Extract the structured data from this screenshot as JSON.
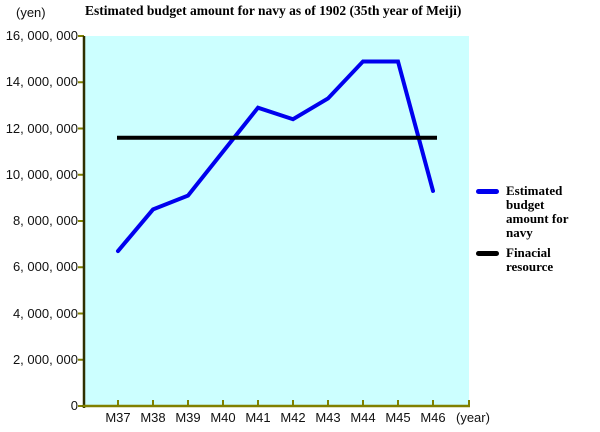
{
  "title": "Estimated budget amount for navy as of 1902 (35th year of Meiji)",
  "y_axis_unit": "(yen)",
  "x_axis_unit": "(year)",
  "chart_data": {
    "type": "line",
    "title": "Estimated budget amount for navy as of 1902 (35th year of Meiji)",
    "xlabel": "(year)",
    "ylabel": "(yen)",
    "categories": [
      "M37",
      "M38",
      "M39",
      "M40",
      "M41",
      "M42",
      "M43",
      "M44",
      "M45",
      "M46"
    ],
    "series": [
      {
        "name": "Estimated budget amount for navy",
        "color": "#0000ee",
        "values": [
          6700000,
          8500000,
          9100000,
          11000000,
          12900000,
          12400000,
          13300000,
          14900000,
          14900000,
          9300000
        ]
      },
      {
        "name": "Finacial resource",
        "color": "#000000",
        "values": [
          11600000,
          11600000,
          11600000,
          11600000,
          11600000,
          11600000,
          11600000,
          11600000,
          11600000,
          11600000
        ]
      }
    ],
    "ylim": [
      0,
      16000000
    ],
    "y_tick_interval": 2000000,
    "y_ticks": [
      {
        "value": 0,
        "label": "0"
      },
      {
        "value": 2000000,
        "label": "2, 000, 000"
      },
      {
        "value": 4000000,
        "label": "4, 000, 000"
      },
      {
        "value": 6000000,
        "label": "6, 000, 000"
      },
      {
        "value": 8000000,
        "label": "8, 000, 000"
      },
      {
        "value": 10000000,
        "label": "10, 000, 000"
      },
      {
        "value": 12000000,
        "label": "12, 000, 000"
      },
      {
        "value": 14000000,
        "label": "14, 000, 000"
      },
      {
        "value": 16000000,
        "label": "16, 000, 000"
      }
    ],
    "grid": false,
    "legend_position": "right",
    "colors": {
      "plot_background": "#ccffff",
      "budget_line": "#0000ee",
      "resource_line": "#000000",
      "x_axis": "#808000",
      "y_axis": "#303000",
      "tick": "#808000"
    }
  },
  "legend": {
    "items": [
      {
        "lines": [
          "Estimated budget",
          "amount for navy"
        ],
        "color": "#0000ee"
      },
      {
        "lines": [
          "Finacial resource"
        ],
        "color": "#000000"
      }
    ]
  }
}
